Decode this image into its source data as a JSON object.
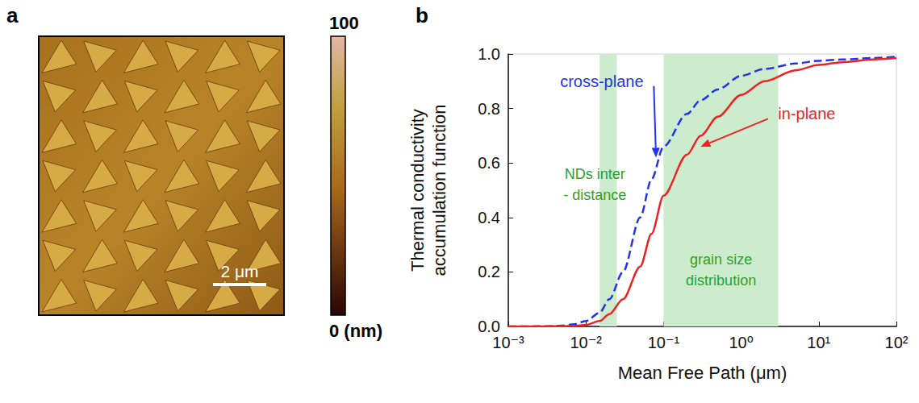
{
  "image_panel": {
    "letter": "a",
    "colorbar": {
      "range": [
        0,
        100
      ],
      "ticks": [
        {
          "value": 100,
          "label": "100"
        },
        {
          "value": 0,
          "label": "0 (nm)"
        }
      ]
    },
    "scale_bar": {
      "label": "2 μm"
    }
  },
  "chart_data": {
    "type": "line",
    "letter": "b",
    "xlabel": "Mean Free Path (μm)",
    "ylabel": "Thermal conductivity accumulation function",
    "log": "x",
    "xlim": [
      0.001,
      100
    ],
    "xticks": [
      {
        "value": 0.001,
        "label": "10⁻³"
      },
      {
        "value": 0.01,
        "label": "10⁻²"
      },
      {
        "value": 0.1,
        "label": "10⁻¹"
      },
      {
        "value": 1,
        "label": "10⁰"
      },
      {
        "value": 10,
        "label": "10¹"
      },
      {
        "value": 100,
        "label": "10²"
      }
    ],
    "ylim": [
      0,
      1
    ],
    "yticks": [
      {
        "value": 0,
        "label": "0.0"
      },
      {
        "value": 0.2,
        "label": "0.2"
      },
      {
        "value": 0.4,
        "label": "0.4"
      },
      {
        "value": 0.6,
        "label": "0.6"
      },
      {
        "value": 0.8,
        "label": "0.8"
      },
      {
        "value": 1,
        "label": "1.0"
      }
    ],
    "grid": false,
    "x": [
      0.001,
      0.002,
      0.003,
      0.005,
      0.007,
      0.01,
      0.015,
      0.02,
      0.03,
      0.05,
      0.07,
      0.1,
      0.2,
      0.3,
      0.5,
      1,
      2,
      5,
      10,
      20,
      50,
      100
    ],
    "series": [
      {
        "name": "cross-plane",
        "color": "#2233ee",
        "line_style": "dashed",
        "values": [
          0,
          0,
          0.001,
          0.003,
          0.008,
          0.02,
          0.05,
          0.1,
          0.2,
          0.4,
          0.54,
          0.66,
          0.78,
          0.83,
          0.87,
          0.92,
          0.945,
          0.965,
          0.975,
          0.98,
          0.985,
          0.99
        ]
      },
      {
        "name": "in-plane",
        "color": "#ee2222",
        "line_style": "solid",
        "values": [
          0,
          0,
          0,
          0.001,
          0.002,
          0.006,
          0.02,
          0.045,
          0.1,
          0.22,
          0.34,
          0.48,
          0.63,
          0.7,
          0.77,
          0.85,
          0.9,
          0.94,
          0.96,
          0.97,
          0.98,
          0.985
        ]
      }
    ],
    "regions": [
      {
        "lines": [
          "NDs inter",
          "- distance"
        ],
        "x": [
          0.015,
          0.025
        ],
        "color": "#cdeccd"
      },
      {
        "lines": [
          "grain size",
          "distribution"
        ],
        "x": [
          0.1,
          3
        ],
        "color": "#cdeccd"
      }
    ]
  }
}
